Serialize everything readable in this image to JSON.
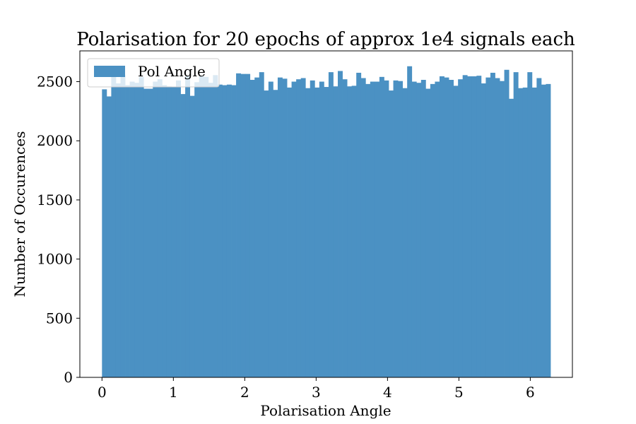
{
  "chart_data": {
    "type": "bar",
    "title": "Polarisation for 20 epochs of approx 1e4 signals each",
    "xlabel": "Polarisation Angle",
    "ylabel": "Number of Occurences",
    "xlim": [
      -0.31,
      6.59
    ],
    "ylim": [
      0,
      2760
    ],
    "xticks": [
      0,
      1,
      2,
      3,
      4,
      5,
      6
    ],
    "yticks": [
      0,
      500,
      1000,
      1500,
      2000,
      2500
    ],
    "grid": false,
    "legend": {
      "position": "top-left",
      "entries": [
        "Pol Angle"
      ]
    },
    "bin_range": [
      0,
      6.283185
    ],
    "bar_color": "#4b91c3",
    "series": [
      {
        "name": "Pol Angle",
        "values": [
          2435,
          2375,
          2555,
          2485,
          2555,
          2470,
          2500,
          2490,
          2540,
          2440,
          2440,
          2500,
          2520,
          2470,
          2460,
          2455,
          2510,
          2395,
          2545,
          2380,
          2495,
          2545,
          2540,
          2490,
          2555,
          2475,
          2470,
          2475,
          2470,
          2570,
          2565,
          2565,
          2515,
          2535,
          2580,
          2425,
          2500,
          2430,
          2535,
          2525,
          2450,
          2500,
          2520,
          2530,
          2445,
          2510,
          2450,
          2500,
          2455,
          2580,
          2460,
          2590,
          2520,
          2460,
          2465,
          2575,
          2530,
          2480,
          2500,
          2500,
          2540,
          2510,
          2425,
          2510,
          2505,
          2445,
          2630,
          2500,
          2490,
          2515,
          2440,
          2480,
          2500,
          2545,
          2535,
          2515,
          2465,
          2520,
          2555,
          2545,
          2545,
          2550,
          2485,
          2535,
          2575,
          2530,
          2505,
          2600,
          2355,
          2580,
          2445,
          2450,
          2580,
          2450,
          2530,
          2475,
          2480
        ]
      }
    ]
  }
}
